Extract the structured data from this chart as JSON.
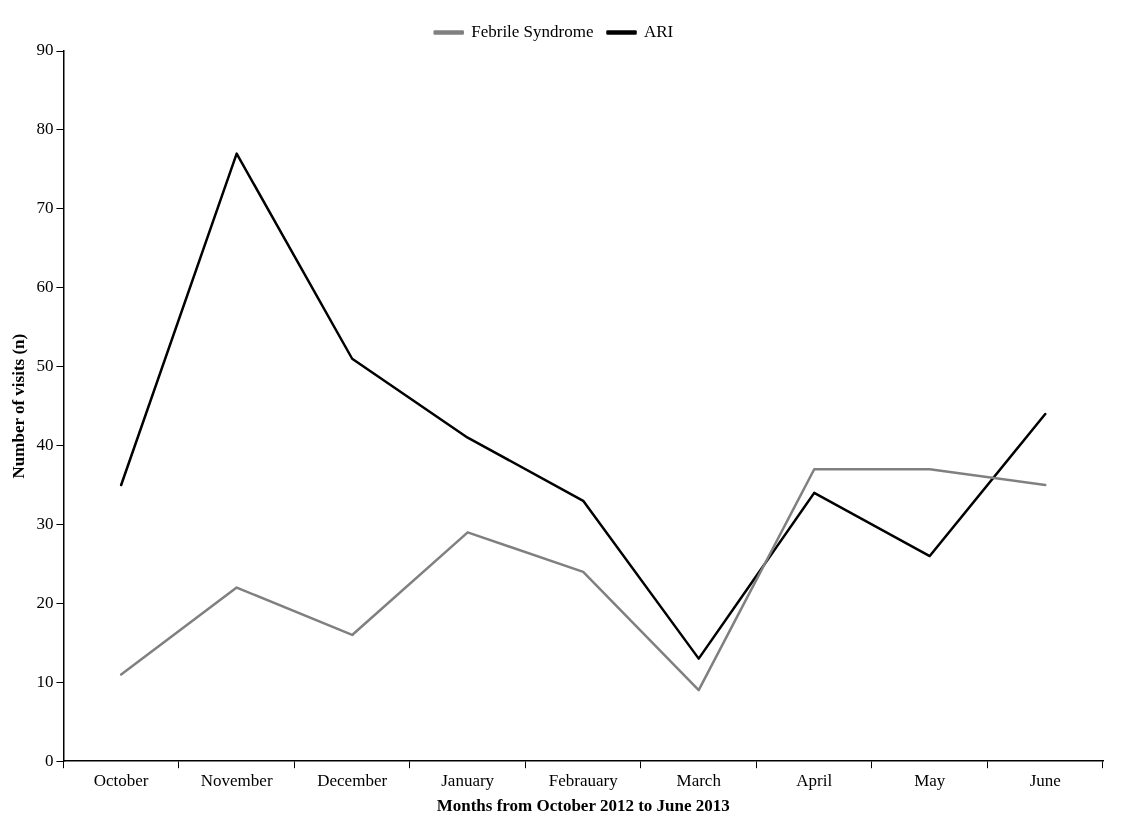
{
  "chart_data": {
    "type": "line",
    "xlabel": "Months from October 2012 to June 2013",
    "ylabel": "Number of visits (n)",
    "categories": [
      "October",
      "November",
      "December",
      "January",
      "Febrauary",
      "March",
      "April",
      "May",
      "June"
    ],
    "series": [
      {
        "name": "Febrile Syndrome",
        "color": "#808080",
        "values": [
          11,
          22,
          16,
          29,
          24,
          9,
          37,
          37,
          35
        ]
      },
      {
        "name": "ARI",
        "color": "#000000",
        "values": [
          35,
          77,
          51,
          41,
          33,
          13,
          34,
          26,
          44
        ]
      }
    ],
    "ylim": [
      0,
      90
    ],
    "yticks": [
      0,
      10,
      20,
      30,
      40,
      50,
      60,
      70,
      80,
      90
    ],
    "grid": false,
    "legend": "top",
    "marker": "none",
    "line_style": "solid"
  }
}
